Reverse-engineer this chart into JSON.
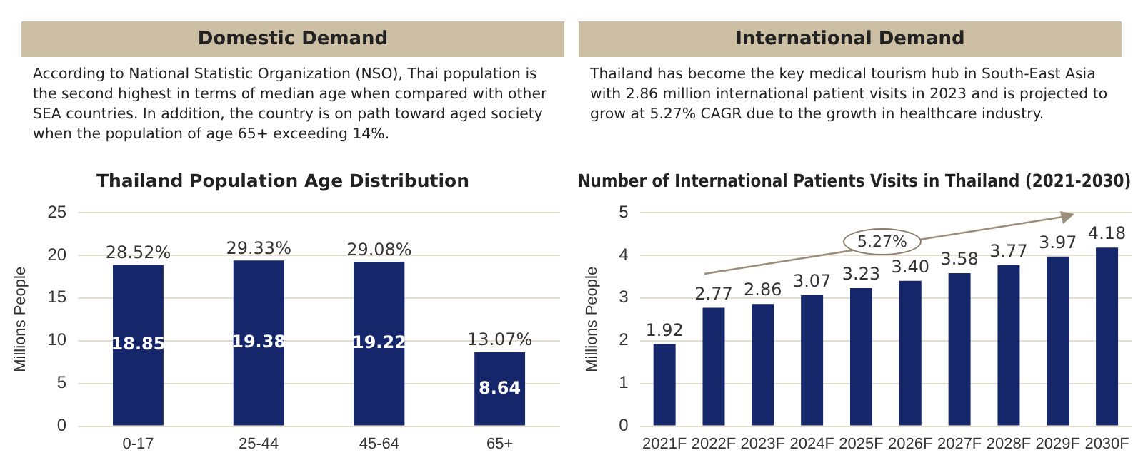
{
  "chart_data": [
    {
      "type": "other",
      "title": "Domestic Demand",
      "annotations": [
        "According to National Statistic Organization (NSO), Thai population is the second highest in terms of median age when compared with other SEA countries. In addition, the country is on path toward aged society when the population of age 65+ exceeding 14%."
      ]
    },
    {
      "type": "other",
      "title": "International Demand",
      "annotations": [
        "Thailand has become the key medical tourism hub in South-East Asia with 2.86 million international patient visits in 2023 and is projected to grow at 5.27% CAGR due to the growth in healthcare industry."
      ]
    },
    {
      "type": "bar",
      "title": "Thailand Population Age Distribution",
      "ylabel": "Millions People",
      "categories": [
        "0-17",
        "25-44",
        "45-64",
        "65+"
      ],
      "values": [
        18.85,
        19.38,
        19.22,
        8.64
      ],
      "color": "#15266b",
      "ylim": [
        0,
        25
      ],
      "yticks": [
        0,
        5,
        10,
        15,
        20,
        25
      ],
      "grid": "y",
      "legend": false,
      "data_labels": true,
      "annotations": [
        {
          "text": "28.52%",
          "x": "0-17",
          "y": 18.85
        },
        {
          "text": "29.33%",
          "x": "25-44",
          "y": 19.38
        },
        {
          "text": "29.08%",
          "x": "45-64",
          "y": 19.22
        },
        {
          "text": "13.07%",
          "x": "65+",
          "y": 8.64
        }
      ]
    },
    {
      "type": "bar",
      "title": "Number of International Patients Visits in Thailand (2021-2030)",
      "ylabel": "Millions People",
      "categories": [
        "2021F",
        "2022F",
        "2023F",
        "2024F",
        "2025F",
        "2026F",
        "2027F",
        "2028F",
        "2029F",
        "2030F"
      ],
      "values": [
        1.92,
        2.77,
        2.86,
        3.07,
        3.23,
        3.4,
        3.58,
        3.77,
        3.97,
        4.18
      ],
      "value_labels": [
        "1.92",
        "2.77",
        "2.86",
        "3.07",
        "3.23",
        "3.40",
        "3.58",
        "3.77",
        "3.97",
        "4.18"
      ],
      "color": "#15266b",
      "ylim": [
        0,
        5
      ],
      "yticks": [
        0,
        1,
        2,
        3,
        4,
        5
      ],
      "grid": "y",
      "legend": false,
      "annotations": [
        "5.27%"
      ]
    }
  ]
}
